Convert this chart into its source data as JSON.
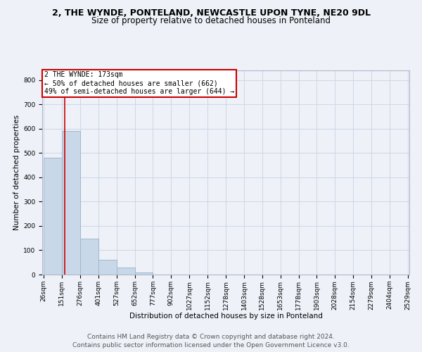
{
  "title": "2, THE WYNDE, PONTELAND, NEWCASTLE UPON TYNE, NE20 9DL",
  "subtitle": "Size of property relative to detached houses in Ponteland",
  "xlabel": "Distribution of detached houses by size in Ponteland",
  "ylabel": "Number of detached properties",
  "footer_line1": "Contains HM Land Registry data © Crown copyright and database right 2024.",
  "footer_line2": "Contains public sector information licensed under the Open Government Licence v3.0.",
  "bin_edges": [
    26,
    151,
    276,
    401,
    527,
    652,
    777,
    902,
    1027,
    1152,
    1278,
    1403,
    1528,
    1653,
    1778,
    1903,
    2028,
    2154,
    2279,
    2404,
    2529
  ],
  "bar_heights": [
    480,
    590,
    148,
    62,
    28,
    10,
    0,
    0,
    0,
    0,
    0,
    0,
    0,
    0,
    0,
    0,
    0,
    0,
    0,
    0
  ],
  "bar_color": "#c8d8e8",
  "bar_edge_color": "#a0b8cc",
  "property_size": 173,
  "red_line_color": "#cc0000",
  "annotation_text": "2 THE WYNDE: 173sqm\n← 50% of detached houses are smaller (662)\n49% of semi-detached houses are larger (644) →",
  "annotation_box_color": "#ffffff",
  "annotation_border_color": "#cc0000",
  "ylim": [
    0,
    840
  ],
  "yticks": [
    0,
    100,
    200,
    300,
    400,
    500,
    600,
    700,
    800
  ],
  "grid_color": "#d0d8e8",
  "bg_color": "#eef2f8",
  "title_fontsize": 9,
  "subtitle_fontsize": 8.5,
  "axis_label_fontsize": 7.5,
  "tick_fontsize": 6.5,
  "annotation_fontsize": 7,
  "footer_fontsize": 6.5
}
